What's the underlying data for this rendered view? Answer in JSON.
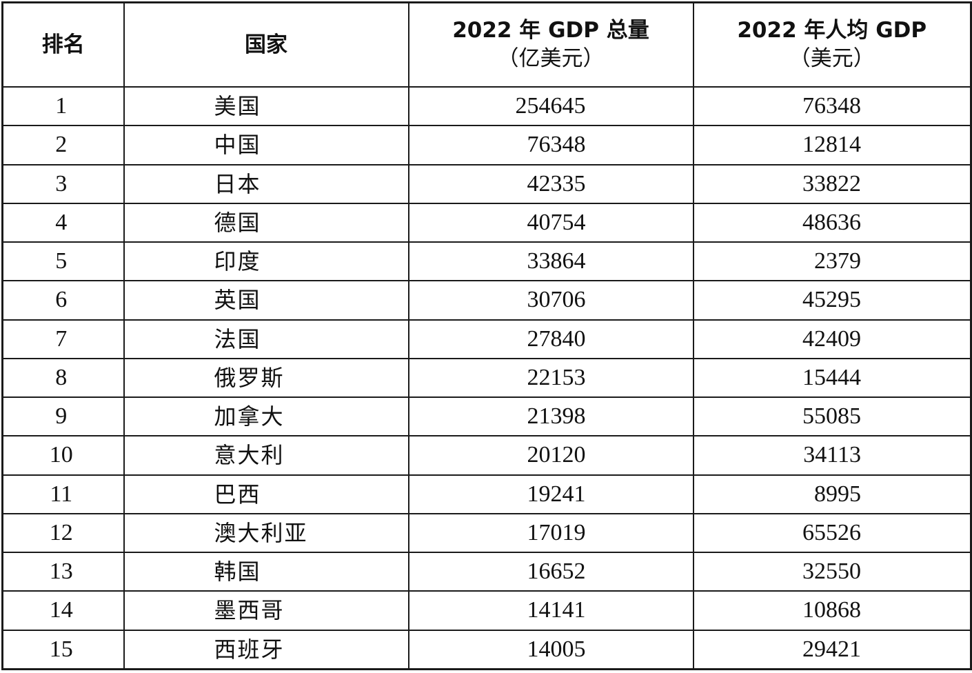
{
  "table": {
    "headers": {
      "rank": "排名",
      "country": "国家",
      "gdp_line1": "2022 年 GDP 总量",
      "gdp_line2": "（亿美元）",
      "pc_line1": "2022 年人均 GDP",
      "pc_line2": "（美元）"
    },
    "rows": [
      {
        "rank": "1",
        "country": "美国",
        "gdp": "254645",
        "per_capita": "76348"
      },
      {
        "rank": "2",
        "country": "中国",
        "gdp": "76348",
        "per_capita": "12814"
      },
      {
        "rank": "3",
        "country": "日本",
        "gdp": "42335",
        "per_capita": "33822"
      },
      {
        "rank": "4",
        "country": "德国",
        "gdp": "40754",
        "per_capita": "48636"
      },
      {
        "rank": "5",
        "country": "印度",
        "gdp": "33864",
        "per_capita": "2379"
      },
      {
        "rank": "6",
        "country": "英国",
        "gdp": "30706",
        "per_capita": "45295"
      },
      {
        "rank": "7",
        "country": "法国",
        "gdp": "27840",
        "per_capita": "42409"
      },
      {
        "rank": "8",
        "country": "俄罗斯",
        "gdp": "22153",
        "per_capita": "15444"
      },
      {
        "rank": "9",
        "country": "加拿大",
        "gdp": "21398",
        "per_capita": "55085"
      },
      {
        "rank": "10",
        "country": "意大利",
        "gdp": "20120",
        "per_capita": "34113"
      },
      {
        "rank": "11",
        "country": "巴西",
        "gdp": "19241",
        "per_capita": "8995"
      },
      {
        "rank": "12",
        "country": "澳大利亚",
        "gdp": "17019",
        "per_capita": "65526"
      },
      {
        "rank": "13",
        "country": "韩国",
        "gdp": "16652",
        "per_capita": "32550"
      },
      {
        "rank": "14",
        "country": "墨西哥",
        "gdp": "14141",
        "per_capita": "10868"
      },
      {
        "rank": "15",
        "country": "西班牙",
        "gdp": "14005",
        "per_capita": "29421"
      }
    ]
  }
}
